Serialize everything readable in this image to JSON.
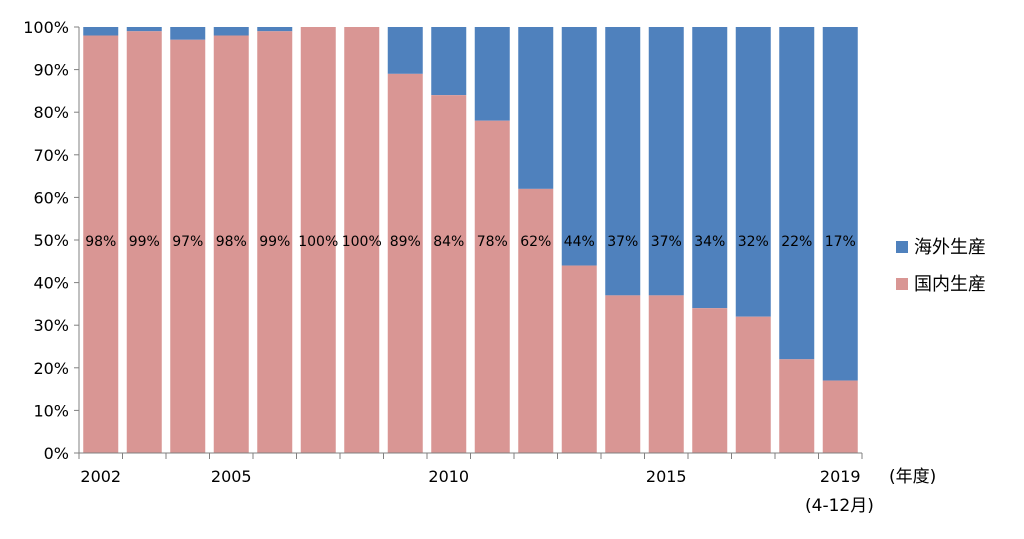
{
  "chart_data": {
    "type": "bar",
    "stacked": "percent",
    "x_ticks": [
      "2002",
      "2005",
      "2010",
      "2015",
      "2019"
    ],
    "x_unit": "(年度)",
    "x_note": "(4-12月)",
    "y_ticks": [
      "0%",
      "10%",
      "20%",
      "30%",
      "40%",
      "50%",
      "60%",
      "70%",
      "80%",
      "90%",
      "100%"
    ],
    "ylim": [
      0,
      100
    ],
    "x": [
      2002,
      2003,
      2004,
      2005,
      2006,
      2007,
      2008,
      2009,
      2010,
      2011,
      2012,
      2013,
      2014,
      2015,
      2016,
      2017,
      2018,
      2019
    ],
    "series": [
      {
        "name": "国内生産",
        "color": "#d99694",
        "values": [
          98,
          99,
          97,
          98,
          99,
          100,
          100,
          89,
          84,
          78,
          62,
          44,
          37,
          37,
          34,
          32,
          22,
          17
        ],
        "labels": [
          "98%",
          "99%",
          "97%",
          "98%",
          "99%",
          "100%",
          "100%",
          "89%",
          "84%",
          "78%",
          "62%",
          "44%",
          "37%",
          "37%",
          "34%",
          "32%",
          "22%",
          "17%"
        ]
      },
      {
        "name": "海外生産",
        "color": "#4f81bd",
        "values": [
          2,
          1,
          3,
          2,
          1,
          0,
          0,
          11,
          16,
          22,
          38,
          56,
          63,
          63,
          66,
          68,
          78,
          83
        ]
      }
    ],
    "legend_position": "right",
    "grid": false
  }
}
